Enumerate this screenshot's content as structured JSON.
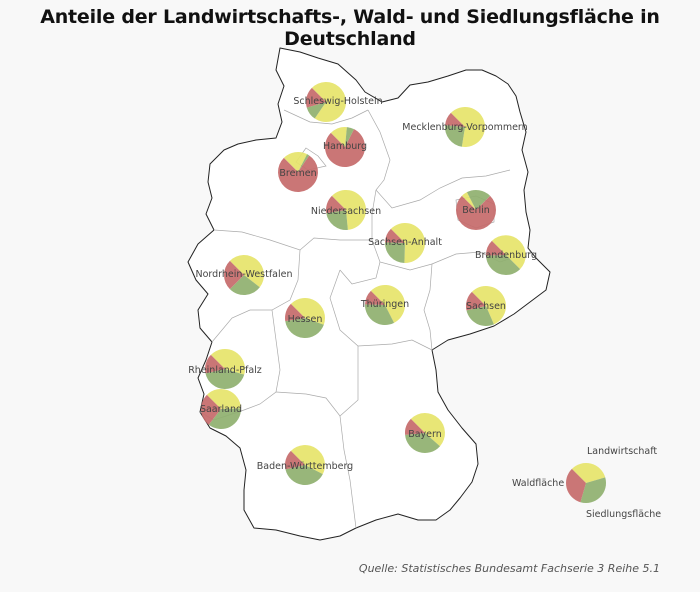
{
  "title": "Anteile der Landwirtschafts-, Wald- und Siedlungsfläche in Deutschland",
  "source": "Quelle: Statistisches Bundesamt Fachserie 3  Reihe 5.1",
  "colors": {
    "landwirtschaft": "#e6e46a",
    "wald": "#8fb06f",
    "siedlung": "#c56a6a",
    "background": "#f8f8f8",
    "map_fill": "#ffffff"
  },
  "legend": {
    "landwirtschaft": "Landwirtschaft",
    "wald": "Waldfläche",
    "siedlung": "Siedlungsfläche"
  },
  "chart_data": {
    "type": "pie-map",
    "categories": [
      "Landwirtschaft",
      "Waldfläche",
      "Siedlungsfläche"
    ],
    "states": [
      {
        "name": "Schleswig-Holstein",
        "values": [
          72,
          11,
          17
        ]
      },
      {
        "name": "Hamburg",
        "values": [
          14,
          6,
          80
        ]
      },
      {
        "name": "Mecklenburg-Vorpommern",
        "values": [
          65,
          24,
          11
        ]
      },
      {
        "name": "Bremen",
        "values": [
          20,
          2,
          78
        ]
      },
      {
        "name": "Berlin",
        "values": [
          5,
          20,
          75
        ]
      },
      {
        "name": "Niedersachsen",
        "values": [
          61,
          24,
          15
        ]
      },
      {
        "name": "Sachsen-Anhalt",
        "values": [
          63,
          25,
          12
        ]
      },
      {
        "name": "Brandenburg",
        "values": [
          50,
          37,
          13
        ]
      },
      {
        "name": "Nordrhein-Westfalen",
        "values": [
          48,
          27,
          25
        ]
      },
      {
        "name": "Thüringen",
        "values": [
          55,
          33,
          12
        ]
      },
      {
        "name": "Sachsen",
        "values": [
          56,
          28,
          16
        ]
      },
      {
        "name": "Hessen",
        "values": [
          43,
          42,
          15
        ]
      },
      {
        "name": "Rheinland-Pfalz",
        "values": [
          42,
          42,
          16
        ]
      },
      {
        "name": "Saarland",
        "values": [
          37,
          36,
          27
        ]
      },
      {
        "name": "Bayern",
        "values": [
          49,
          37,
          14
        ]
      },
      {
        "name": "Baden-Württemberg",
        "values": [
          45,
          39,
          16
        ]
      }
    ],
    "legend_values": [
      33,
      34,
      33
    ]
  }
}
